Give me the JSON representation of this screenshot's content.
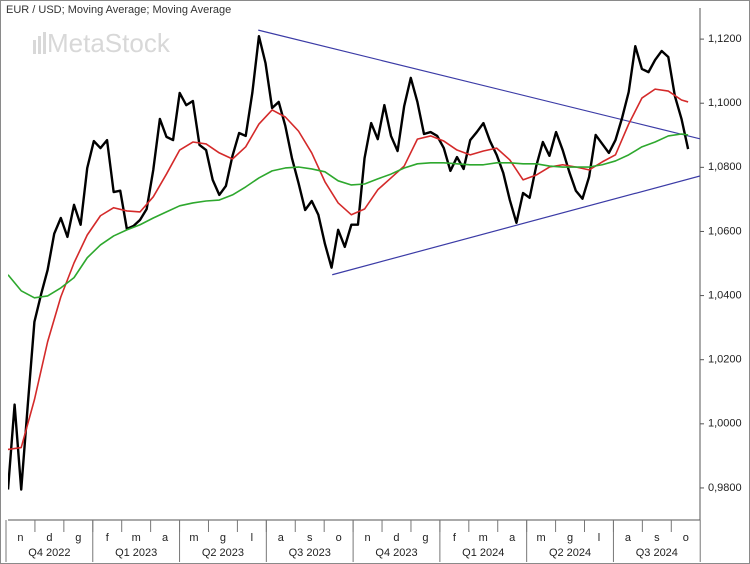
{
  "chart_data": {
    "type": "line",
    "title": "EUR / USD; Moving Average; Moving Average",
    "watermark": "MetaStock",
    "categories": [
      "n",
      "d",
      "g",
      "f",
      "m",
      "a",
      "m",
      "g",
      "l",
      "a",
      "s",
      "o",
      "n",
      "d",
      "g",
      "f",
      "m",
      "a",
      "m",
      "g",
      "l",
      "a",
      "s",
      "o"
    ],
    "quarters": [
      "Q4 2022",
      "Q1 2023",
      "Q2 2023",
      "Q3 2023",
      "Q4 2023",
      "Q1 2024",
      "Q2 2024",
      "Q3 2024"
    ],
    "xlim": [
      0,
      104.8
    ],
    "ylim": [
      0.97,
      1.1297
    ],
    "yticks": [
      {
        "value": 0.98,
        "label": "0,9800"
      },
      {
        "value": 1.0,
        "label": "1,0000"
      },
      {
        "value": 1.02,
        "label": "1,0200"
      },
      {
        "value": 1.04,
        "label": "1,0400"
      },
      {
        "value": 1.06,
        "label": "1,0600"
      },
      {
        "value": 1.08,
        "label": "1,0800"
      },
      {
        "value": 1.1,
        "label": "1,1000"
      },
      {
        "value": 1.12,
        "label": "1,1200"
      }
    ],
    "series": [
      {
        "color": "#000000",
        "x": [
          0,
          1,
          2,
          3,
          4,
          5,
          6,
          7,
          8,
          9,
          10,
          11,
          12,
          13,
          14,
          15,
          16,
          17,
          18,
          19,
          20,
          21,
          22,
          23,
          24,
          25,
          26,
          27,
          28,
          29,
          30,
          31,
          32,
          33,
          34,
          35,
          36,
          37,
          38,
          39,
          40,
          41,
          42,
          43,
          44,
          45,
          46,
          47,
          48,
          49,
          50,
          51,
          52,
          53,
          54,
          55,
          56,
          57,
          58,
          59,
          60,
          61,
          62,
          63,
          64,
          65,
          66,
          67,
          68,
          69,
          70,
          71,
          72,
          73,
          74,
          75,
          76,
          77,
          78,
          79,
          80,
          81,
          82,
          83,
          84,
          85,
          86,
          87,
          88,
          89,
          90,
          91,
          92,
          93,
          94,
          95,
          96,
          97,
          98,
          99,
          100,
          101,
          102,
          103
        ],
        "values": [
          0.9795,
          1.006,
          0.9795,
          1.006,
          1.0318,
          1.0403,
          1.048,
          1.0593,
          1.0642,
          1.0583,
          1.0683,
          1.0621,
          1.0798,
          1.0882,
          1.086,
          1.0885,
          1.0723,
          1.0727,
          1.0608,
          1.0617,
          1.0636,
          1.067,
          1.0792,
          1.0951,
          1.0895,
          1.0885,
          1.1032,
          1.0994,
          1.1007,
          1.087,
          1.0854,
          1.0761,
          1.0714,
          1.0742,
          1.0836,
          1.0907,
          1.0898,
          1.1032,
          1.1209,
          1.1125,
          1.0985,
          1.1004,
          1.0929,
          1.0829,
          1.0751,
          1.0667,
          1.0695,
          1.0652,
          1.0561,
          1.0487,
          1.0605,
          1.0552,
          1.0621,
          1.0621,
          1.0829,
          1.0938,
          1.0888,
          1.0994,
          1.0898,
          1.0851,
          1.0991,
          1.1079,
          1.1004,
          1.0904,
          1.091,
          1.0898,
          1.086,
          1.0789,
          1.0832,
          1.0795,
          1.0885,
          1.091,
          1.0938,
          1.0882,
          1.0839,
          1.0783,
          1.0698,
          1.0627,
          1.072,
          1.0705,
          1.0804,
          1.0879,
          1.0836,
          1.091,
          1.0854,
          1.0786,
          1.0727,
          1.0702,
          1.077,
          1.0901,
          1.0873,
          1.0845,
          1.0885,
          1.0954,
          1.1035,
          1.1178,
          1.1107,
          1.1097,
          1.1135,
          1.1163,
          1.1144,
          1.1022,
          1.0951,
          1.0857
        ]
      },
      {
        "color": "#d42a2a",
        "x": [
          0,
          2,
          4,
          6,
          8,
          10,
          12,
          14,
          16,
          18,
          20,
          22,
          24,
          26,
          28,
          30,
          32,
          34,
          36,
          38,
          40,
          42,
          44,
          46,
          48,
          50,
          52,
          54,
          56,
          58,
          60,
          62,
          64,
          66,
          68,
          70,
          72,
          74,
          76,
          78,
          80,
          82,
          84,
          86,
          88,
          90,
          92,
          94,
          96,
          98,
          100,
          102,
          103
        ],
        "values": [
          0.992,
          0.9926,
          1.0075,
          1.0256,
          1.0396,
          1.0502,
          1.0589,
          1.0649,
          1.0674,
          1.0664,
          1.0661,
          1.0708,
          1.0779,
          1.0854,
          1.0879,
          1.0873,
          1.0845,
          1.0826,
          1.0864,
          1.0935,
          1.0979,
          1.0957,
          1.0913,
          1.0845,
          1.0755,
          1.0689,
          1.0652,
          1.067,
          1.073,
          1.0767,
          1.0804,
          1.0888,
          1.0898,
          1.0882,
          1.0854,
          1.0839,
          1.0851,
          1.086,
          1.0823,
          1.0761,
          1.0776,
          1.0801,
          1.0808,
          1.0801,
          1.0792,
          1.0817,
          1.0839,
          1.0935,
          1.1016,
          1.1044,
          1.1038,
          1.101,
          1.1004
        ]
      },
      {
        "color": "#2ea82e",
        "x": [
          0,
          2,
          4,
          6,
          8,
          10,
          12,
          14,
          16,
          18,
          20,
          22,
          24,
          26,
          28,
          30,
          32,
          34,
          36,
          38,
          40,
          42,
          44,
          46,
          48,
          50,
          52,
          54,
          56,
          58,
          60,
          62,
          64,
          66,
          68,
          70,
          72,
          74,
          76,
          78,
          80,
          82,
          84,
          86,
          88,
          90,
          92,
          94,
          96,
          98,
          100,
          102,
          103
        ],
        "values": [
          1.0465,
          1.0415,
          1.0393,
          1.0399,
          1.0424,
          1.0456,
          1.0518,
          1.0558,
          1.0586,
          1.0605,
          1.0621,
          1.0642,
          1.0661,
          1.068,
          1.0689,
          1.0695,
          1.0698,
          1.0714,
          1.0739,
          1.0767,
          1.0789,
          1.0798,
          1.0801,
          1.0795,
          1.0786,
          1.0758,
          1.0745,
          1.0748,
          1.0764,
          1.0779,
          1.0798,
          1.0811,
          1.0814,
          1.0814,
          1.0811,
          1.0808,
          1.0808,
          1.0814,
          1.0814,
          1.0811,
          1.0811,
          1.0804,
          1.0801,
          1.0801,
          1.0801,
          1.0808,
          1.082,
          1.0839,
          1.0864,
          1.0879,
          1.0898,
          1.0904,
          1.0901
        ]
      }
    ],
    "trendlines": [
      {
        "color": "#3b3ba6",
        "x": [
          37.9,
          104.8
        ],
        "values": [
          1.1228,
          1.0889
        ]
      },
      {
        "color": "#3b3ba6",
        "x": [
          49.1,
          104.8
        ],
        "values": [
          1.0465,
          1.0773
        ]
      }
    ]
  }
}
